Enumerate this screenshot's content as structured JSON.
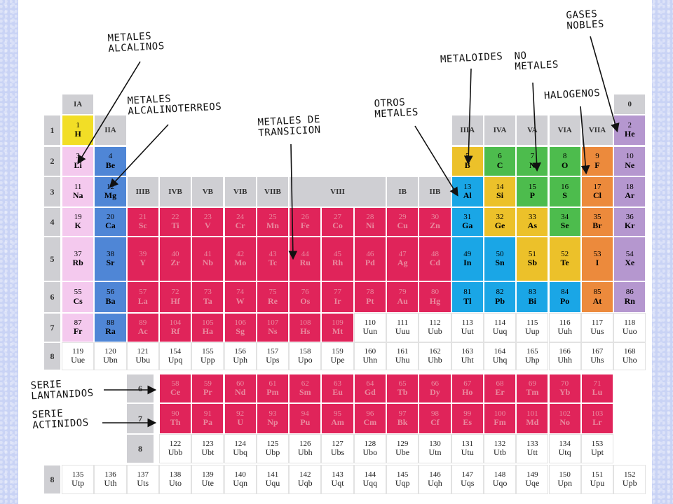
{
  "colors": {
    "alcalinos": "#f4c9ee",
    "alcalinoterreos": "#4f86d6",
    "transicion": "#e0245a",
    "otros": "#1aa6e6",
    "metaloides": "#ecc12a",
    "nometales": "#4dbc4d",
    "halogenos": "#ec8a3c",
    "nobles": "#b597cf",
    "hidrogeno": "#f2de26",
    "gris": "#cfcfd3",
    "blanco": "#ffffff"
  },
  "group_headers": [
    {
      "label": "IA",
      "col": 0,
      "row": -1
    },
    {
      "label": "IIA",
      "col": 1,
      "row": 0
    },
    {
      "label": "IIIA",
      "col": 12,
      "row": 0
    },
    {
      "label": "IVA",
      "col": 13,
      "row": 0
    },
    {
      "label": "VA",
      "col": 14,
      "row": 0
    },
    {
      "label": "VIA",
      "col": 15,
      "row": 0
    },
    {
      "label": "VIIA",
      "col": 16,
      "row": 0
    },
    {
      "label": "0",
      "col": 17,
      "row": -1
    },
    {
      "label": "IIIB",
      "col": 2,
      "row": 2
    },
    {
      "label": "IVB",
      "col": 3,
      "row": 2
    },
    {
      "label": "VB",
      "col": 4,
      "row": 2
    },
    {
      "label": "VIB",
      "col": 5,
      "row": 2
    },
    {
      "label": "VIIB",
      "col": 6,
      "row": 2
    },
    {
      "label": "VIII",
      "col": 7,
      "row": 2,
      "span": 3
    },
    {
      "label": "IB",
      "col": 10,
      "row": 2
    },
    {
      "label": "IIB",
      "col": 11,
      "row": 2
    }
  ],
  "row_labels": [
    "1",
    "2",
    "3",
    "4",
    "5",
    "6",
    "7",
    "8"
  ],
  "lanth_row_labels": [
    "6",
    "7",
    "8"
  ],
  "bottom_row_label": "8",
  "elements": [
    {
      "n": "1",
      "s": "H",
      "r": 0,
      "c": 0,
      "cat": "hidrogeno"
    },
    {
      "n": "2",
      "s": "He",
      "r": 0,
      "c": 17,
      "cat": "nobles"
    },
    {
      "n": "3",
      "s": "Li",
      "r": 1,
      "c": 0,
      "cat": "alcalinos"
    },
    {
      "n": "4",
      "s": "Be",
      "r": 1,
      "c": 1,
      "cat": "alcalinoterreos"
    },
    {
      "n": "5",
      "s": "B",
      "r": 1,
      "c": 12,
      "cat": "metaloides"
    },
    {
      "n": "6",
      "s": "C",
      "r": 1,
      "c": 13,
      "cat": "nometales"
    },
    {
      "n": "7",
      "s": "N",
      "r": 1,
      "c": 14,
      "cat": "nometales"
    },
    {
      "n": "8",
      "s": "O",
      "r": 1,
      "c": 15,
      "cat": "nometales"
    },
    {
      "n": "9",
      "s": "F",
      "r": 1,
      "c": 16,
      "cat": "halogenos"
    },
    {
      "n": "10",
      "s": "Ne",
      "r": 1,
      "c": 17,
      "cat": "nobles"
    },
    {
      "n": "11",
      "s": "Na",
      "r": 2,
      "c": 0,
      "cat": "alcalinos"
    },
    {
      "n": "12",
      "s": "Mg",
      "r": 2,
      "c": 1,
      "cat": "alcalinoterreos"
    },
    {
      "n": "13",
      "s": "Al",
      "r": 2,
      "c": 12,
      "cat": "otros"
    },
    {
      "n": "14",
      "s": "Si",
      "r": 2,
      "c": 13,
      "cat": "metaloides"
    },
    {
      "n": "15",
      "s": "P",
      "r": 2,
      "c": 14,
      "cat": "nometales"
    },
    {
      "n": "16",
      "s": "S",
      "r": 2,
      "c": 15,
      "cat": "nometales"
    },
    {
      "n": "17",
      "s": "Cl",
      "r": 2,
      "c": 16,
      "cat": "halogenos"
    },
    {
      "n": "18",
      "s": "Ar",
      "r": 2,
      "c": 17,
      "cat": "nobles"
    },
    {
      "n": "19",
      "s": "K",
      "r": 3,
      "c": 0,
      "cat": "alcalinos"
    },
    {
      "n": "20",
      "s": "Ca",
      "r": 3,
      "c": 1,
      "cat": "alcalinoterreos"
    },
    {
      "n": "21",
      "s": "Sc",
      "r": 3,
      "c": 2,
      "cat": "transicion"
    },
    {
      "n": "22",
      "s": "Ti",
      "r": 3,
      "c": 3,
      "cat": "transicion"
    },
    {
      "n": "23",
      "s": "V",
      "r": 3,
      "c": 4,
      "cat": "transicion"
    },
    {
      "n": "24",
      "s": "Cr",
      "r": 3,
      "c": 5,
      "cat": "transicion"
    },
    {
      "n": "25",
      "s": "Mn",
      "r": 3,
      "c": 6,
      "cat": "transicion"
    },
    {
      "n": "26",
      "s": "Fe",
      "r": 3,
      "c": 7,
      "cat": "transicion"
    },
    {
      "n": "27",
      "s": "Co",
      "r": 3,
      "c": 8,
      "cat": "transicion"
    },
    {
      "n": "28",
      "s": "Ni",
      "r": 3,
      "c": 9,
      "cat": "transicion"
    },
    {
      "n": "29",
      "s": "Cu",
      "r": 3,
      "c": 10,
      "cat": "transicion"
    },
    {
      "n": "30",
      "s": "Zn",
      "r": 3,
      "c": 11,
      "cat": "transicion"
    },
    {
      "n": "31",
      "s": "Ga",
      "r": 3,
      "c": 12,
      "cat": "otros"
    },
    {
      "n": "32",
      "s": "Ge",
      "r": 3,
      "c": 13,
      "cat": "metaloides"
    },
    {
      "n": "33",
      "s": "As",
      "r": 3,
      "c": 14,
      "cat": "metaloides"
    },
    {
      "n": "34",
      "s": "Se",
      "r": 3,
      "c": 15,
      "cat": "nometales"
    },
    {
      "n": "35",
      "s": "Br",
      "r": 3,
      "c": 16,
      "cat": "halogenos"
    },
    {
      "n": "36",
      "s": "Kr",
      "r": 3,
      "c": 17,
      "cat": "nobles"
    },
    {
      "n": "37",
      "s": "Rb",
      "r": 4,
      "c": 0,
      "cat": "alcalinos"
    },
    {
      "n": "38",
      "s": "Sr",
      "r": 4,
      "c": 1,
      "cat": "alcalinoterreos"
    },
    {
      "n": "39",
      "s": "Y",
      "r": 4,
      "c": 2,
      "cat": "transicion"
    },
    {
      "n": "40",
      "s": "Zr",
      "r": 4,
      "c": 3,
      "cat": "transicion"
    },
    {
      "n": "41",
      "s": "Nb",
      "r": 4,
      "c": 4,
      "cat": "transicion"
    },
    {
      "n": "42",
      "s": "Mo",
      "r": 4,
      "c": 5,
      "cat": "transicion"
    },
    {
      "n": "43",
      "s": "Tc",
      "r": 4,
      "c": 6,
      "cat": "transicion"
    },
    {
      "n": "44",
      "s": "Ru",
      "r": 4,
      "c": 7,
      "cat": "transicion"
    },
    {
      "n": "45",
      "s": "Rh",
      "r": 4,
      "c": 8,
      "cat": "transicion"
    },
    {
      "n": "46",
      "s": "Pd",
      "r": 4,
      "c": 9,
      "cat": "transicion"
    },
    {
      "n": "47",
      "s": "Ag",
      "r": 4,
      "c": 10,
      "cat": "transicion"
    },
    {
      "n": "48",
      "s": "Cd",
      "r": 4,
      "c": 11,
      "cat": "transicion"
    },
    {
      "n": "49",
      "s": "In",
      "r": 4,
      "c": 12,
      "cat": "otros"
    },
    {
      "n": "50",
      "s": "Sn",
      "r": 4,
      "c": 13,
      "cat": "otros"
    },
    {
      "n": "51",
      "s": "Sb",
      "r": 4,
      "c": 14,
      "cat": "metaloides"
    },
    {
      "n": "52",
      "s": "Te",
      "r": 4,
      "c": 15,
      "cat": "metaloides"
    },
    {
      "n": "53",
      "s": "I",
      "r": 4,
      "c": 16,
      "cat": "halogenos"
    },
    {
      "n": "54",
      "s": "Xe",
      "r": 4,
      "c": 17,
      "cat": "nobles"
    },
    {
      "n": "55",
      "s": "Cs",
      "r": 5,
      "c": 0,
      "cat": "alcalinos"
    },
    {
      "n": "56",
      "s": "Ba",
      "r": 5,
      "c": 1,
      "cat": "alcalinoterreos"
    },
    {
      "n": "57",
      "s": "La",
      "r": 5,
      "c": 2,
      "cat": "transicion"
    },
    {
      "n": "72",
      "s": "Hf",
      "r": 5,
      "c": 3,
      "cat": "transicion"
    },
    {
      "n": "73",
      "s": "Ta",
      "r": 5,
      "c": 4,
      "cat": "transicion"
    },
    {
      "n": "74",
      "s": "W",
      "r": 5,
      "c": 5,
      "cat": "transicion"
    },
    {
      "n": "75",
      "s": "Re",
      "r": 5,
      "c": 6,
      "cat": "transicion"
    },
    {
      "n": "76",
      "s": "Os",
      "r": 5,
      "c": 7,
      "cat": "transicion"
    },
    {
      "n": "77",
      "s": "Ir",
      "r": 5,
      "c": 8,
      "cat": "transicion"
    },
    {
      "n": "78",
      "s": "Pt",
      "r": 5,
      "c": 9,
      "cat": "transicion"
    },
    {
      "n": "79",
      "s": "Au",
      "r": 5,
      "c": 10,
      "cat": "transicion"
    },
    {
      "n": "80",
      "s": "Hg",
      "r": 5,
      "c": 11,
      "cat": "transicion"
    },
    {
      "n": "81",
      "s": "Tl",
      "r": 5,
      "c": 12,
      "cat": "otros"
    },
    {
      "n": "82",
      "s": "Pb",
      "r": 5,
      "c": 13,
      "cat": "otros"
    },
    {
      "n": "83",
      "s": "Bi",
      "r": 5,
      "c": 14,
      "cat": "otros"
    },
    {
      "n": "84",
      "s": "Po",
      "r": 5,
      "c": 15,
      "cat": "otros"
    },
    {
      "n": "85",
      "s": "At",
      "r": 5,
      "c": 16,
      "cat": "halogenos"
    },
    {
      "n": "86",
      "s": "Rn",
      "r": 5,
      "c": 17,
      "cat": "nobles"
    },
    {
      "n": "87",
      "s": "Fr",
      "r": 6,
      "c": 0,
      "cat": "alcalinos"
    },
    {
      "n": "88",
      "s": "Ra",
      "r": 6,
      "c": 1,
      "cat": "alcalinoterreos"
    },
    {
      "n": "89",
      "s": "Ac",
      "r": 6,
      "c": 2,
      "cat": "transicion"
    },
    {
      "n": "104",
      "s": "Rf",
      "r": 6,
      "c": 3,
      "cat": "transicion"
    },
    {
      "n": "105",
      "s": "Ha",
      "r": 6,
      "c": 4,
      "cat": "transicion"
    },
    {
      "n": "106",
      "s": "Sg",
      "r": 6,
      "c": 5,
      "cat": "transicion"
    },
    {
      "n": "107",
      "s": "Ns",
      "r": 6,
      "c": 6,
      "cat": "transicion"
    },
    {
      "n": "108",
      "s": "Hs",
      "r": 6,
      "c": 7,
      "cat": "transicion"
    },
    {
      "n": "109",
      "s": "Mt",
      "r": 6,
      "c": 8,
      "cat": "transicion"
    },
    {
      "n": "110",
      "s": "Uun",
      "r": 6,
      "c": 9,
      "cat": "blanco"
    },
    {
      "n": "111",
      "s": "Uuu",
      "r": 6,
      "c": 10,
      "cat": "blanco"
    },
    {
      "n": "112",
      "s": "Uub",
      "r": 6,
      "c": 11,
      "cat": "blanco"
    },
    {
      "n": "113",
      "s": "Uut",
      "r": 6,
      "c": 12,
      "cat": "blanco"
    },
    {
      "n": "114",
      "s": "Uuq",
      "r": 6,
      "c": 13,
      "cat": "blanco"
    },
    {
      "n": "115",
      "s": "Uup",
      "r": 6,
      "c": 14,
      "cat": "blanco"
    },
    {
      "n": "116",
      "s": "Uuh",
      "r": 6,
      "c": 15,
      "cat": "blanco"
    },
    {
      "n": "117",
      "s": "Uus",
      "r": 6,
      "c": 16,
      "cat": "blanco"
    },
    {
      "n": "118",
      "s": "Uuo",
      "r": 6,
      "c": 17,
      "cat": "blanco"
    },
    {
      "n": "119",
      "s": "Uue",
      "r": 7,
      "c": 0,
      "cat": "blanco"
    },
    {
      "n": "120",
      "s": "Ubn",
      "r": 7,
      "c": 1,
      "cat": "blanco"
    },
    {
      "n": "121",
      "s": "Ubu",
      "r": 7,
      "c": 2,
      "cat": "blanco"
    },
    {
      "n": "154",
      "s": "Upq",
      "r": 7,
      "c": 3,
      "cat": "blanco"
    },
    {
      "n": "155",
      "s": "Upp",
      "r": 7,
      "c": 4,
      "cat": "blanco"
    },
    {
      "n": "156",
      "s": "Uph",
      "r": 7,
      "c": 5,
      "cat": "blanco"
    },
    {
      "n": "157",
      "s": "Ups",
      "r": 7,
      "c": 6,
      "cat": "blanco"
    },
    {
      "n": "158",
      "s": "Upo",
      "r": 7,
      "c": 7,
      "cat": "blanco"
    },
    {
      "n": "159",
      "s": "Upe",
      "r": 7,
      "c": 8,
      "cat": "blanco"
    },
    {
      "n": "160",
      "s": "Uhn",
      "r": 7,
      "c": 9,
      "cat": "blanco"
    },
    {
      "n": "161",
      "s": "Uhu",
      "r": 7,
      "c": 10,
      "cat": "blanco"
    },
    {
      "n": "162",
      "s": "Uhb",
      "r": 7,
      "c": 11,
      "cat": "blanco"
    },
    {
      "n": "163",
      "s": "Uht",
      "r": 7,
      "c": 12,
      "cat": "blanco"
    },
    {
      "n": "164",
      "s": "Uhq",
      "r": 7,
      "c": 13,
      "cat": "blanco"
    },
    {
      "n": "165",
      "s": "Uhp",
      "r": 7,
      "c": 14,
      "cat": "blanco"
    },
    {
      "n": "166",
      "s": "Uhh",
      "r": 7,
      "c": 15,
      "cat": "blanco"
    },
    {
      "n": "167",
      "s": "Uhs",
      "r": 7,
      "c": 16,
      "cat": "blanco"
    },
    {
      "n": "168",
      "s": "Uho",
      "r": 7,
      "c": 17,
      "cat": "blanco"
    }
  ],
  "lanthanides": [
    {
      "n": "58",
      "s": "Ce"
    },
    {
      "n": "59",
      "s": "Pr"
    },
    {
      "n": "60",
      "s": "Nd"
    },
    {
      "n": "61",
      "s": "Pm"
    },
    {
      "n": "62",
      "s": "Sm"
    },
    {
      "n": "63",
      "s": "Eu"
    },
    {
      "n": "64",
      "s": "Gd"
    },
    {
      "n": "65",
      "s": "Tb"
    },
    {
      "n": "66",
      "s": "Dy"
    },
    {
      "n": "67",
      "s": "Ho"
    },
    {
      "n": "68",
      "s": "Er"
    },
    {
      "n": "69",
      "s": "Tm"
    },
    {
      "n": "70",
      "s": "Yb"
    },
    {
      "n": "71",
      "s": "Lu"
    }
  ],
  "actinides": [
    {
      "n": "90",
      "s": "Th"
    },
    {
      "n": "91",
      "s": "Pa"
    },
    {
      "n": "92",
      "s": "U"
    },
    {
      "n": "93",
      "s": "Np"
    },
    {
      "n": "94",
      "s": "Pu"
    },
    {
      "n": "95",
      "s": "Am"
    },
    {
      "n": "96",
      "s": "Cm"
    },
    {
      "n": "97",
      "s": "Bk"
    },
    {
      "n": "98",
      "s": "Cf"
    },
    {
      "n": "99",
      "s": "Es"
    },
    {
      "n": "100",
      "s": "Fm"
    },
    {
      "n": "101",
      "s": "Md"
    },
    {
      "n": "102",
      "s": "No"
    },
    {
      "n": "103",
      "s": "Lr"
    }
  ],
  "superactinides": [
    {
      "n": "122",
      "s": "Ubb"
    },
    {
      "n": "123",
      "s": "Ubt"
    },
    {
      "n": "124",
      "s": "Ubq"
    },
    {
      "n": "125",
      "s": "Ubp"
    },
    {
      "n": "126",
      "s": "Ubh"
    },
    {
      "n": "127",
      "s": "Ubs"
    },
    {
      "n": "128",
      "s": "Ubo"
    },
    {
      "n": "129",
      "s": "Ube"
    },
    {
      "n": "130",
      "s": "Utn"
    },
    {
      "n": "131",
      "s": "Utu"
    },
    {
      "n": "132",
      "s": "Utb"
    },
    {
      "n": "133",
      "s": "Utt"
    },
    {
      "n": "134",
      "s": "Utq"
    },
    {
      "n": "153",
      "s": "Upt"
    }
  ],
  "bottom_row": [
    {
      "n": "135",
      "s": "Utp"
    },
    {
      "n": "136",
      "s": "Uth"
    },
    {
      "n": "137",
      "s": "Uts"
    },
    {
      "n": "138",
      "s": "Uto"
    },
    {
      "n": "139",
      "s": "Ute"
    },
    {
      "n": "140",
      "s": "Uqn"
    },
    {
      "n": "141",
      "s": "Uqu"
    },
    {
      "n": "142",
      "s": "Uqb"
    },
    {
      "n": "143",
      "s": "Uqt"
    },
    {
      "n": "144",
      "s": "Uqq"
    },
    {
      "n": "145",
      "s": "Uqp"
    },
    {
      "n": "146",
      "s": "Uqh"
    },
    {
      "n": "147",
      "s": "Uqs"
    },
    {
      "n": "148",
      "s": "Uqo"
    },
    {
      "n": "149",
      "s": "Uqe"
    },
    {
      "n": "150",
      "s": "Upn"
    },
    {
      "n": "151",
      "s": "Upu"
    },
    {
      "n": "152",
      "s": "Upb"
    }
  ],
  "annotations": {
    "alcalinos": "METALES\nALCALINOS",
    "alcalinoterreos": "METALES\nALCALINOTERREOS",
    "transicion": "METALES DE\nTRANSICION",
    "otros": "OTROS\nMETALES",
    "metaloides": "METALOIDES",
    "nometales": "NO\nMETALES",
    "halogenos": "HALOGENOS",
    "nobles": "GASES\nNOBLES",
    "lantanidos": "SERIE\nLANTANIDOS",
    "actinidos": "SERIE\nACTINIDOS"
  }
}
